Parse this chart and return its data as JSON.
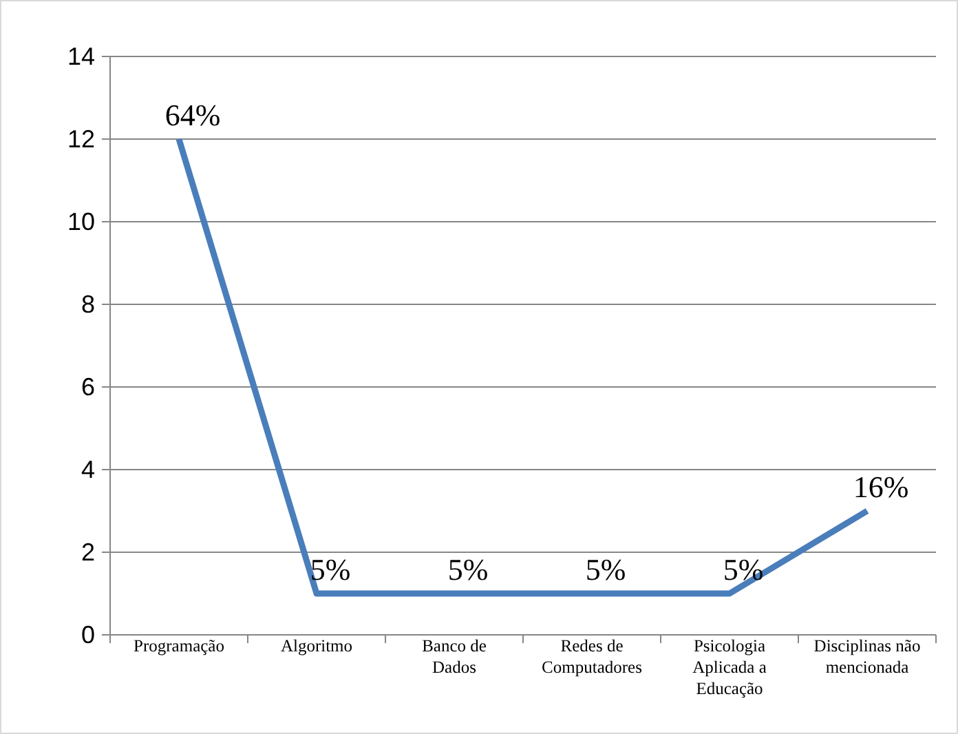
{
  "chart_data": {
    "type": "line",
    "categories": [
      "Programação",
      "Algoritmo",
      "Banco de Dados",
      "Redes de Computadores",
      "Psicologia Aplicada a Educação",
      "Disciplinas não mencionada"
    ],
    "series": [
      {
        "color": "#4a7ebb",
        "values": [
          12,
          1,
          1,
          1,
          1,
          3
        ]
      }
    ],
    "annotations": [
      {
        "text": "64%",
        "x": "Programação",
        "y": 12
      },
      {
        "text": "5%",
        "x": "Algoritmo",
        "y": 1
      },
      {
        "text": "5%",
        "x": "Banco de Dados",
        "y": 1
      },
      {
        "text": "5%",
        "x": "Redes de Computadores",
        "y": 1
      },
      {
        "text": "5%",
        "x": "Psicologia Aplicada a Educação",
        "y": 1
      },
      {
        "text": "16%",
        "x": "Disciplinas não mencionada",
        "y": 3
      }
    ],
    "ylim": [
      0,
      14
    ],
    "yticks": [
      0,
      2,
      4,
      6,
      8,
      10,
      12,
      14
    ],
    "grid": "y",
    "marker": "none",
    "line_style": "solid"
  }
}
